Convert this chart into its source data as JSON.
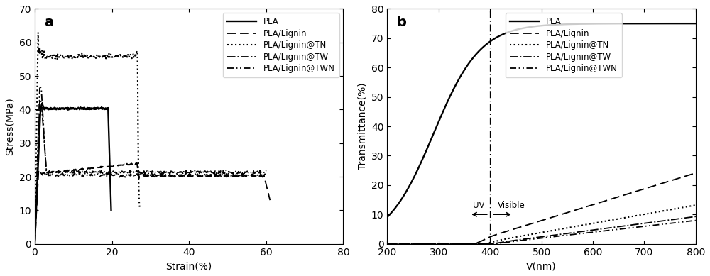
{
  "fig_width": 10.0,
  "fig_height": 3.89,
  "background_color": "#ffffff",
  "plot_a": {
    "label": "a",
    "xlabel": "Strain(%)",
    "ylabel": "Stress(MPa)",
    "xlim": [
      0,
      80
    ],
    "ylim": [
      0,
      70
    ],
    "xticks": [
      0,
      20,
      40,
      60,
      80
    ],
    "yticks": [
      0,
      10,
      20,
      30,
      40,
      50,
      60,
      70
    ],
    "legend_labels": [
      "PLA",
      "PLA/Lignin",
      "PLA/Lignin@TN",
      "PLA/Lignin@TW",
      "PLA/Lignin@TWN"
    ]
  },
  "plot_b": {
    "label": "b",
    "xlabel": "V(nm)",
    "ylabel": "Transmittance(%)",
    "xlim": [
      200,
      800
    ],
    "ylim": [
      0,
      80
    ],
    "xticks": [
      200,
      300,
      400,
      500,
      600,
      700,
      800
    ],
    "yticks": [
      0,
      10,
      20,
      30,
      40,
      50,
      60,
      70,
      80
    ],
    "vline_x": 400,
    "legend_labels": [
      "PLA",
      "PLA/Lignin",
      "PLA/Lignin@TN",
      "PLA/Lignin@TW",
      "PLA/Lignin@TWN"
    ]
  }
}
